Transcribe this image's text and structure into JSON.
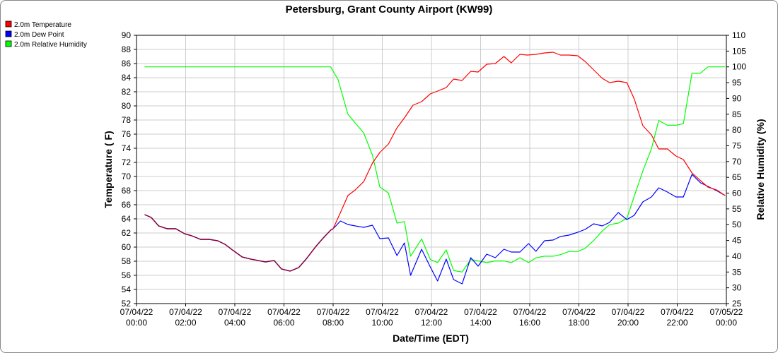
{
  "chart_data": {
    "type": "line",
    "title": "Petersburg, Grant County Airport (KW99)",
    "xlabel": "Date/Time (EDT)",
    "ylabel_left": "Temperature ( F)",
    "ylabel_right": "Relative Humidity (%)",
    "ylim_left": [
      52,
      90
    ],
    "ylim_right": [
      25,
      110
    ],
    "left_ticks": [
      "52",
      "54",
      "56",
      "58",
      "60",
      "62",
      "64",
      "66",
      "68",
      "70",
      "72",
      "74",
      "76",
      "78",
      "80",
      "82",
      "84",
      "86",
      "88",
      "90"
    ],
    "right_ticks": [
      "25",
      "30",
      "35",
      "40",
      "45",
      "50",
      "55",
      "60",
      "65",
      "70",
      "75",
      "80",
      "85",
      "90",
      "95",
      "100",
      "105",
      "110"
    ],
    "x_ticks": [
      {
        "hour": 0,
        "date": "07/04/22",
        "time": "00:00"
      },
      {
        "hour": 2,
        "date": "07/04/22",
        "time": "02:00"
      },
      {
        "hour": 4,
        "date": "07/04/22",
        "time": "04:00"
      },
      {
        "hour": 6,
        "date": "07/04/22",
        "time": "06:00"
      },
      {
        "hour": 8,
        "date": "07/04/22",
        "time": "08:00"
      },
      {
        "hour": 10,
        "date": "07/04/22",
        "time": "10:00"
      },
      {
        "hour": 12,
        "date": "07/04/22",
        "time": "12:00"
      },
      {
        "hour": 14,
        "date": "07/04/22",
        "time": "14:00"
      },
      {
        "hour": 16,
        "date": "07/04/22",
        "time": "16:00"
      },
      {
        "hour": 18,
        "date": "07/04/22",
        "time": "18:00"
      },
      {
        "hour": 20,
        "date": "07/04/22",
        "time": "20:00"
      },
      {
        "hour": 22,
        "date": "07/04/22",
        "time": "22:00"
      },
      {
        "hour": 24,
        "date": "07/05/22",
        "time": "00:00"
      }
    ],
    "grid": true,
    "legend_position": "top-left",
    "series": [
      {
        "name": "2.0m Temperature",
        "color": "#ff0000",
        "axis": "left",
        "points": [
          [
            0.33,
            64.6
          ],
          [
            0.6,
            64.2
          ],
          [
            0.9,
            63.0
          ],
          [
            1.25,
            62.6
          ],
          [
            1.6,
            62.6
          ],
          [
            1.95,
            61.9
          ],
          [
            2.25,
            61.6
          ],
          [
            2.6,
            61.1
          ],
          [
            2.95,
            61.1
          ],
          [
            3.3,
            60.9
          ],
          [
            3.6,
            60.4
          ],
          [
            3.9,
            59.6
          ],
          [
            4.3,
            58.6
          ],
          [
            4.65,
            58.3
          ],
          [
            4.95,
            58.1
          ],
          [
            5.25,
            57.9
          ],
          [
            5.6,
            58.1
          ],
          [
            5.9,
            56.9
          ],
          [
            6.25,
            56.6
          ],
          [
            6.6,
            57.1
          ],
          [
            6.9,
            58.3
          ],
          [
            7.3,
            60.1
          ],
          [
            7.6,
            61.3
          ],
          [
            7.9,
            62.4
          ],
          [
            8.0,
            62.6
          ],
          [
            8.3,
            64.9
          ],
          [
            8.6,
            67.3
          ],
          [
            8.9,
            68.1
          ],
          [
            9.25,
            69.3
          ],
          [
            9.6,
            71.9
          ],
          [
            9.9,
            73.4
          ],
          [
            10.25,
            74.6
          ],
          [
            10.6,
            76.9
          ],
          [
            10.9,
            78.3
          ],
          [
            11.25,
            80.1
          ],
          [
            11.6,
            80.6
          ],
          [
            11.95,
            81.7
          ],
          [
            12.25,
            82.1
          ],
          [
            12.6,
            82.6
          ],
          [
            12.9,
            83.8
          ],
          [
            13.25,
            83.6
          ],
          [
            13.6,
            84.9
          ],
          [
            13.9,
            84.8
          ],
          [
            14.25,
            85.9
          ],
          [
            14.6,
            86.0
          ],
          [
            14.95,
            87.0
          ],
          [
            15.25,
            86.1
          ],
          [
            15.6,
            87.3
          ],
          [
            15.9,
            87.2
          ],
          [
            16.25,
            87.3
          ],
          [
            16.6,
            87.5
          ],
          [
            16.95,
            87.6
          ],
          [
            17.25,
            87.2
          ],
          [
            17.6,
            87.2
          ],
          [
            17.95,
            87.1
          ],
          [
            18.25,
            86.3
          ],
          [
            18.6,
            85.1
          ],
          [
            18.95,
            83.9
          ],
          [
            19.25,
            83.3
          ],
          [
            19.6,
            83.5
          ],
          [
            19.95,
            83.3
          ],
          [
            20.25,
            81.0
          ],
          [
            20.6,
            77.2
          ],
          [
            20.95,
            75.9
          ],
          [
            21.25,
            73.9
          ],
          [
            21.6,
            73.9
          ],
          [
            21.95,
            72.9
          ],
          [
            22.25,
            72.4
          ],
          [
            22.6,
            70.5
          ],
          [
            22.95,
            69.4
          ],
          [
            23.25,
            68.5
          ],
          [
            23.6,
            68.1
          ],
          [
            23.95,
            67.3
          ]
        ]
      },
      {
        "name": "2.0m Dew Point",
        "color": "#0000ff",
        "axis": "left",
        "points": [
          [
            0.33,
            64.6
          ],
          [
            0.6,
            64.2
          ],
          [
            0.9,
            63.0
          ],
          [
            1.25,
            62.6
          ],
          [
            1.6,
            62.6
          ],
          [
            1.95,
            61.9
          ],
          [
            2.25,
            61.6
          ],
          [
            2.6,
            61.1
          ],
          [
            2.95,
            61.1
          ],
          [
            3.3,
            60.9
          ],
          [
            3.6,
            60.4
          ],
          [
            3.9,
            59.6
          ],
          [
            4.3,
            58.6
          ],
          [
            4.65,
            58.3
          ],
          [
            4.95,
            58.1
          ],
          [
            5.25,
            57.9
          ],
          [
            5.6,
            58.1
          ],
          [
            5.9,
            56.9
          ],
          [
            6.25,
            56.6
          ],
          [
            6.6,
            57.1
          ],
          [
            6.9,
            58.3
          ],
          [
            7.3,
            60.1
          ],
          [
            7.6,
            61.3
          ],
          [
            7.9,
            62.4
          ],
          [
            8.0,
            62.6
          ],
          [
            8.3,
            63.7
          ],
          [
            8.6,
            63.2
          ],
          [
            8.9,
            63.0
          ],
          [
            9.25,
            62.8
          ],
          [
            9.6,
            63.1
          ],
          [
            9.9,
            61.2
          ],
          [
            10.25,
            61.3
          ],
          [
            10.6,
            58.8
          ],
          [
            10.9,
            60.6
          ],
          [
            11.15,
            56.0
          ],
          [
            11.6,
            59.7
          ],
          [
            11.95,
            57.2
          ],
          [
            12.25,
            55.2
          ],
          [
            12.6,
            58.3
          ],
          [
            12.9,
            55.4
          ],
          [
            13.25,
            54.8
          ],
          [
            13.6,
            58.5
          ],
          [
            13.9,
            57.3
          ],
          [
            14.25,
            59.0
          ],
          [
            14.6,
            58.5
          ],
          [
            14.95,
            59.7
          ],
          [
            15.25,
            59.3
          ],
          [
            15.6,
            59.3
          ],
          [
            15.95,
            60.5
          ],
          [
            16.25,
            59.4
          ],
          [
            16.6,
            60.9
          ],
          [
            16.95,
            61.0
          ],
          [
            17.25,
            61.5
          ],
          [
            17.6,
            61.7
          ],
          [
            17.95,
            62.1
          ],
          [
            18.25,
            62.5
          ],
          [
            18.6,
            63.3
          ],
          [
            18.95,
            63.0
          ],
          [
            19.25,
            63.5
          ],
          [
            19.6,
            64.9
          ],
          [
            19.95,
            63.9
          ],
          [
            20.25,
            64.5
          ],
          [
            20.6,
            66.4
          ],
          [
            20.95,
            67.1
          ],
          [
            21.25,
            68.4
          ],
          [
            21.6,
            67.8
          ],
          [
            21.95,
            67.1
          ],
          [
            22.25,
            67.1
          ],
          [
            22.6,
            70.3
          ],
          [
            22.95,
            69.1
          ],
          [
            23.25,
            68.6
          ],
          [
            23.6,
            68.0
          ],
          [
            23.95,
            67.3
          ]
        ]
      },
      {
        "name": "2.0m Relative Humidity",
        "color": "#00ff00",
        "axis": "right",
        "points": [
          [
            0.33,
            100
          ],
          [
            2.0,
            100
          ],
          [
            4.0,
            100
          ],
          [
            6.0,
            100
          ],
          [
            7.9,
            100
          ],
          [
            8.2,
            96
          ],
          [
            8.6,
            85
          ],
          [
            9.25,
            79
          ],
          [
            9.6,
            72
          ],
          [
            9.9,
            62
          ],
          [
            10.25,
            60
          ],
          [
            10.6,
            50.5
          ],
          [
            10.9,
            51
          ],
          [
            11.15,
            40
          ],
          [
            11.6,
            45.5
          ],
          [
            11.95,
            39
          ],
          [
            12.25,
            38
          ],
          [
            12.6,
            42
          ],
          [
            12.9,
            35.5
          ],
          [
            13.25,
            35
          ],
          [
            13.6,
            39
          ],
          [
            13.9,
            38.5
          ],
          [
            14.25,
            38
          ],
          [
            14.6,
            38.5
          ],
          [
            14.95,
            38.5
          ],
          [
            15.25,
            38
          ],
          [
            15.6,
            39.5
          ],
          [
            15.95,
            38
          ],
          [
            16.25,
            39.5
          ],
          [
            16.6,
            40
          ],
          [
            16.95,
            40
          ],
          [
            17.25,
            40.5
          ],
          [
            17.6,
            41.5
          ],
          [
            17.95,
            41.5
          ],
          [
            18.25,
            42.5
          ],
          [
            18.6,
            45
          ],
          [
            18.95,
            48
          ],
          [
            19.25,
            50
          ],
          [
            19.6,
            50.5
          ],
          [
            19.95,
            52
          ],
          [
            20.25,
            59
          ],
          [
            20.6,
            67
          ],
          [
            20.95,
            74
          ],
          [
            21.25,
            83
          ],
          [
            21.6,
            81.5
          ],
          [
            21.95,
            81.5
          ],
          [
            22.25,
            82
          ],
          [
            22.6,
            98
          ],
          [
            22.95,
            98
          ],
          [
            23.25,
            100
          ],
          [
            23.6,
            100
          ],
          [
            23.95,
            100
          ]
        ]
      }
    ]
  }
}
